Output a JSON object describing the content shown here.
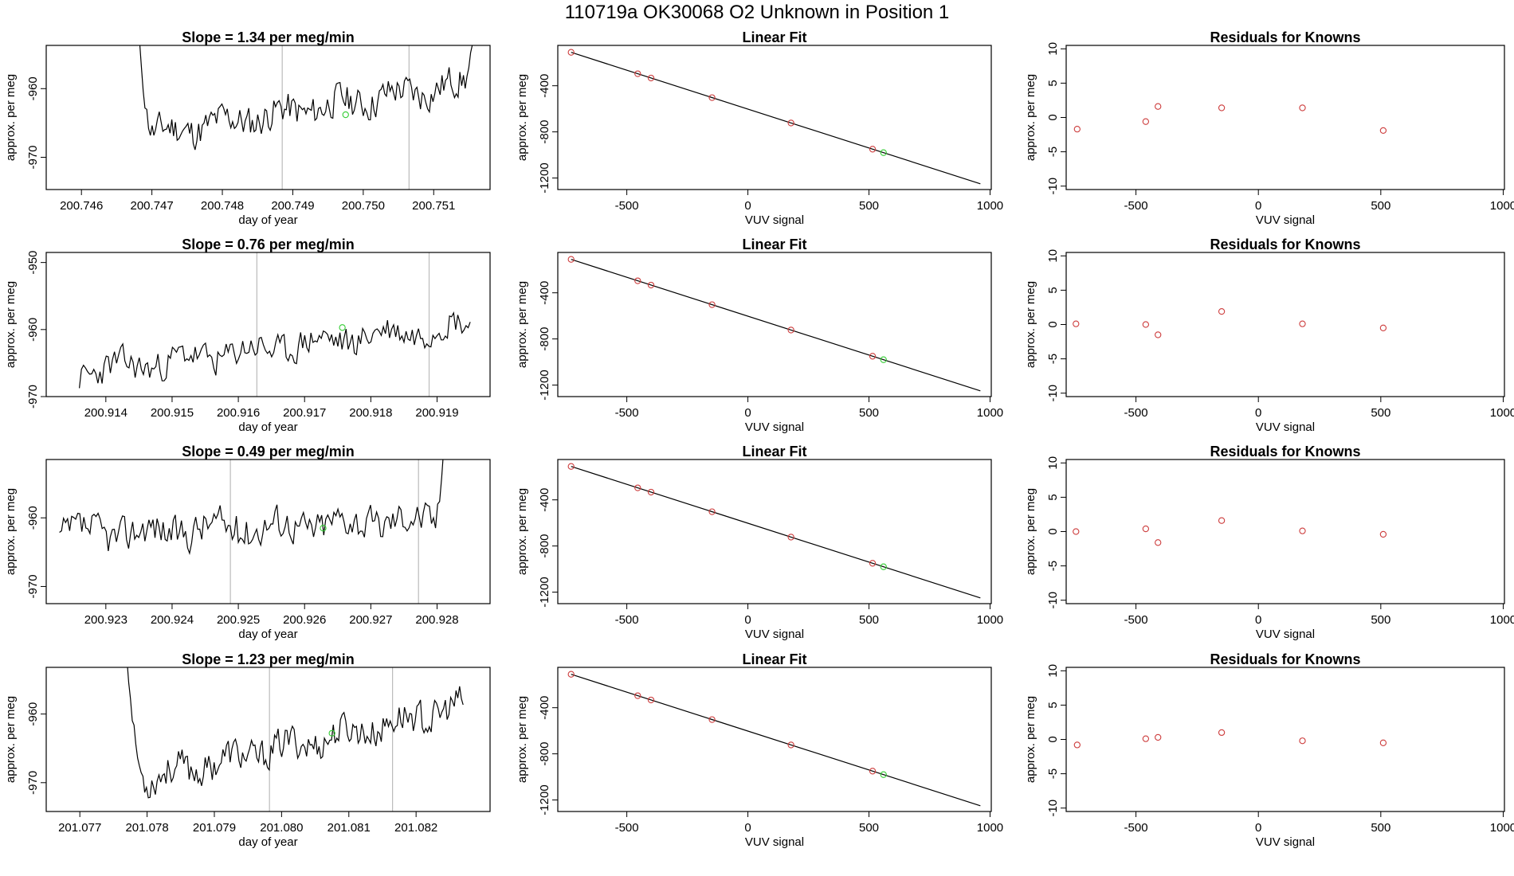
{
  "title": "110719a      OK30068    O2 Unknown in Position  1",
  "colors": {
    "line": "#000000",
    "known_point": "#cd3c3c",
    "unknown_point": "#32cd32",
    "divider": "#bbbbbb",
    "box": "#000000"
  },
  "chart_data": [
    {
      "type": "line",
      "panel": "timeseries",
      "row": 1,
      "title": "Slope =  1.34  per meg/min",
      "xlabel": "day of year",
      "ylabel": "approx. per meg",
      "xlim": [
        200.7455,
        200.7518
      ],
      "ylim": [
        -974.7,
        -953.7
      ],
      "xticks": [
        200.746,
        200.747,
        200.748,
        200.749,
        200.75,
        200.751
      ],
      "xtick_labels": [
        "200.746",
        "200.747",
        "200.748",
        "200.749",
        "200.750",
        "200.751"
      ],
      "yticks": [
        -960,
        -970
      ],
      "ytick_labels": [
        "-960",
        "-970"
      ],
      "x_start": 200.7468,
      "x_end": 200.7516,
      "seed": 11,
      "base": -967.0,
      "trend": 8.0,
      "noise": 2.2,
      "start_spike": {
        "from": -950,
        "frac": 0.05
      },
      "end_spike": {
        "to": -950,
        "frac": 0.04
      },
      "vlines": [
        200.74885,
        200.75065
      ],
      "unknown_point": {
        "x": 200.74975,
        "y": -963.8
      }
    },
    {
      "type": "scatter",
      "panel": "linear_fit",
      "row": 1,
      "title": "Linear Fit",
      "xlabel": "VUV signal",
      "ylabel": "approx. per meg",
      "xlim": [
        -785,
        1005
      ],
      "ylim": [
        -1300,
        -50
      ],
      "xticks": [
        -500,
        0,
        500,
        1000
      ],
      "xtick_labels": [
        "-500",
        "0",
        "500",
        "1000"
      ],
      "yticks": [
        -400,
        -800,
        -1200
      ],
      "ytick_labels": [
        "-400",
        "-800",
        "-1200"
      ],
      "fit_line": {
        "x": [
          -730,
          960
        ],
        "y": [
          -110,
          -1250
        ]
      },
      "known_points": {
        "x": [
          -730,
          -455,
          -400,
          -148,
          178,
          515
        ],
        "y": [
          -110,
          -296,
          -333,
          -503,
          -723,
          -950
        ]
      },
      "unknown_point": {
        "x": 560,
        "y": -980
      }
    },
    {
      "type": "scatter",
      "panel": "residuals",
      "row": 1,
      "title": "Residuals for Knowns",
      "xlabel": "VUV signal",
      "ylabel": "approx. per meg",
      "xlim": [
        -785,
        1005
      ],
      "ylim": [
        -10.5,
        10.5
      ],
      "xticks": [
        -500,
        0,
        500,
        1000
      ],
      "xtick_labels": [
        "-500",
        "0",
        "500",
        "1000"
      ],
      "yticks": [
        10,
        5,
        0,
        -5,
        -10
      ],
      "ytick_labels": [
        "10",
        "5",
        "0",
        "-5",
        "-10"
      ],
      "points": {
        "x": [
          -740,
          -460,
          -410,
          -150,
          180,
          510
        ],
        "y": [
          -1.7,
          -0.6,
          1.6,
          1.4,
          1.4,
          -1.9
        ]
      }
    },
    {
      "type": "line",
      "panel": "timeseries",
      "row": 2,
      "title": "Slope =  0.76  per meg/min",
      "xlabel": "day of year",
      "ylabel": "approx. per meg",
      "xlim": [
        200.9131,
        200.9198
      ],
      "ylim": [
        -970,
        -948.5
      ],
      "xticks": [
        200.914,
        200.915,
        200.916,
        200.917,
        200.918,
        200.919
      ],
      "xtick_labels": [
        "200.914",
        "200.915",
        "200.916",
        "200.917",
        "200.918",
        "200.919"
      ],
      "yticks": [
        -950,
        -960,
        -970
      ],
      "ytick_labels": [
        "-950",
        "-960",
        "-970"
      ],
      "x_start": 200.9136,
      "x_end": 200.9195,
      "seed": 23,
      "base": -966.5,
      "trend": 7.5,
      "noise": 2.1,
      "start_spike": null,
      "end_spike": null,
      "vlines": [
        200.91628,
        200.91888
      ],
      "unknown_point": {
        "x": 200.91757,
        "y": -959.7
      }
    },
    {
      "type": "scatter",
      "panel": "linear_fit",
      "row": 2,
      "title": "Linear Fit",
      "xlabel": "VUV signal",
      "ylabel": "approx. per meg",
      "xlim": [
        -785,
        1005
      ],
      "ylim": [
        -1300,
        -50
      ],
      "xticks": [
        -500,
        0,
        500,
        1000
      ],
      "xtick_labels": [
        "-500",
        "0",
        "500",
        "1000"
      ],
      "yticks": [
        -400,
        -800,
        -1200
      ],
      "ytick_labels": [
        "-400",
        "-800",
        "-1200"
      ],
      "fit_line": {
        "x": [
          -730,
          960
        ],
        "y": [
          -110,
          -1250
        ]
      },
      "known_points": {
        "x": [
          -730,
          -455,
          -400,
          -148,
          178,
          515
        ],
        "y": [
          -110,
          -296,
          -333,
          -503,
          -723,
          -950
        ]
      },
      "unknown_point": {
        "x": 560,
        "y": -980
      }
    },
    {
      "type": "scatter",
      "panel": "residuals",
      "row": 2,
      "title": "Residuals for Knowns",
      "xlabel": "VUV signal",
      "ylabel": "approx. per meg",
      "xlim": [
        -785,
        1005
      ],
      "ylim": [
        -10.5,
        10.5
      ],
      "xticks": [
        -500,
        0,
        500,
        1000
      ],
      "xtick_labels": [
        "-500",
        "0",
        "500",
        "1000"
      ],
      "yticks": [
        10,
        5,
        0,
        -5,
        -10
      ],
      "ytick_labels": [
        "10",
        "5",
        "0",
        "-5",
        "-10"
      ],
      "points": {
        "x": [
          -745,
          -460,
          -410,
          -150,
          180,
          510
        ],
        "y": [
          0.1,
          0.0,
          -1.5,
          1.9,
          0.1,
          -0.5
        ]
      }
    },
    {
      "type": "line",
      "panel": "timeseries",
      "row": 3,
      "title": "Slope =  0.49  per meg/min",
      "xlabel": "day of year",
      "ylabel": "approx. per meg",
      "xlim": [
        200.9221,
        200.9288
      ],
      "ylim": [
        -972.5,
        -951.5
      ],
      "xticks": [
        200.923,
        200.924,
        200.925,
        200.926,
        200.927,
        200.928
      ],
      "xtick_labels": [
        "200.923",
        "200.924",
        "200.925",
        "200.926",
        "200.927",
        "200.928"
      ],
      "yticks": [
        -960,
        -970
      ],
      "ytick_labels": [
        "-960",
        "-970"
      ],
      "x_start": 200.9223,
      "x_end": 200.9281,
      "seed": 37,
      "base": -962.5,
      "trend": 2.5,
      "noise": 2.4,
      "start_spike": null,
      "end_spike": {
        "to": -950,
        "frac": 0.025
      },
      "vlines": [
        200.92488,
        200.92772
      ],
      "unknown_point": {
        "x": 200.92628,
        "y": -961.5
      }
    },
    {
      "type": "scatter",
      "panel": "linear_fit",
      "row": 3,
      "title": "Linear Fit",
      "xlabel": "VUV signal",
      "ylabel": "approx. per meg",
      "xlim": [
        -785,
        1005
      ],
      "ylim": [
        -1300,
        -50
      ],
      "xticks": [
        -500,
        0,
        500,
        1000
      ],
      "xtick_labels": [
        "-500",
        "0",
        "500",
        "1000"
      ],
      "yticks": [
        -400,
        -800,
        -1200
      ],
      "ytick_labels": [
        "-400",
        "-800",
        "-1200"
      ],
      "fit_line": {
        "x": [
          -730,
          960
        ],
        "y": [
          -110,
          -1250
        ]
      },
      "known_points": {
        "x": [
          -730,
          -455,
          -400,
          -148,
          178,
          515
        ],
        "y": [
          -110,
          -296,
          -333,
          -503,
          -723,
          -950
        ]
      },
      "unknown_point": {
        "x": 560,
        "y": -980
      }
    },
    {
      "type": "scatter",
      "panel": "residuals",
      "row": 3,
      "title": "Residuals for Knowns",
      "xlabel": "VUV signal",
      "ylabel": "approx. per meg",
      "xlim": [
        -785,
        1005
      ],
      "ylim": [
        -10.5,
        10.5
      ],
      "xticks": [
        -500,
        0,
        500,
        1000
      ],
      "xtick_labels": [
        "-500",
        "0",
        "500",
        "1000"
      ],
      "points": {
        "x": [
          -745,
          -460,
          -410,
          -150,
          180,
          510
        ],
        "y": [
          0.0,
          0.4,
          -1.6,
          1.6,
          0.1,
          -0.4
        ]
      },
      "yticks": [
        10,
        5,
        0,
        -5,
        -10
      ],
      "ytick_labels": [
        "10",
        "5",
        "0",
        "-5",
        "-10"
      ]
    },
    {
      "type": "line",
      "panel": "timeseries",
      "row": 4,
      "title": "Slope =  1.23  per meg/min",
      "xlabel": "day of year",
      "ylabel": "approx. per meg",
      "xlim": [
        201.0765,
        201.0831
      ],
      "ylim": [
        -974.2,
        -953.2
      ],
      "xticks": [
        201.077,
        201.078,
        201.079,
        201.08,
        201.081,
        201.082
      ],
      "xtick_labels": [
        "201.077",
        "201.078",
        "201.079",
        "201.080",
        "201.081",
        "201.082"
      ],
      "yticks": [
        -960,
        -970
      ],
      "ytick_labels": [
        "-960",
        "-970"
      ],
      "x_start": 201.0777,
      "x_end": 201.0827,
      "seed": 53,
      "base": -970.0,
      "trend": 11.0,
      "noise": 2.2,
      "start_spike": {
        "from": -952,
        "frac": 0.06
      },
      "end_spike": null,
      "vlines": [
        201.07982,
        201.08165
      ],
      "unknown_point": {
        "x": 201.08075,
        "y": -962.8
      }
    },
    {
      "type": "scatter",
      "panel": "linear_fit",
      "row": 4,
      "title": "Linear Fit",
      "xlabel": "VUV signal",
      "ylabel": "approx. per meg",
      "xlim": [
        -785,
        1005
      ],
      "ylim": [
        -1300,
        -50
      ],
      "xticks": [
        -500,
        0,
        500,
        1000
      ],
      "xtick_labels": [
        "-500",
        "0",
        "500",
        "1000"
      ],
      "yticks": [
        -400,
        -800,
        -1200
      ],
      "ytick_labels": [
        "-400",
        "-800",
        "-1200"
      ],
      "fit_line": {
        "x": [
          -730,
          960
        ],
        "y": [
          -110,
          -1250
        ]
      },
      "known_points": {
        "x": [
          -730,
          -455,
          -400,
          -148,
          178,
          515
        ],
        "y": [
          -110,
          -296,
          -333,
          -503,
          -723,
          -950
        ]
      },
      "unknown_point": {
        "x": 560,
        "y": -980
      }
    },
    {
      "type": "scatter",
      "panel": "residuals",
      "row": 4,
      "title": "Residuals for Knowns",
      "xlabel": "VUV signal",
      "ylabel": "approx. per meg",
      "xlim": [
        -785,
        1005
      ],
      "ylim": [
        -10.5,
        10.5
      ],
      "xticks": [
        -500,
        0,
        500,
        1000
      ],
      "xtick_labels": [
        "-500",
        "0",
        "500",
        "1000"
      ],
      "yticks": [
        10,
        5,
        0,
        -5,
        -10
      ],
      "ytick_labels": [
        "10",
        "5",
        "0",
        "-5",
        "-10"
      ],
      "points": {
        "x": [
          -740,
          -460,
          -410,
          -150,
          180,
          510
        ],
        "y": [
          -0.8,
          0.1,
          0.3,
          1.0,
          -0.2,
          -0.5
        ]
      }
    }
  ]
}
